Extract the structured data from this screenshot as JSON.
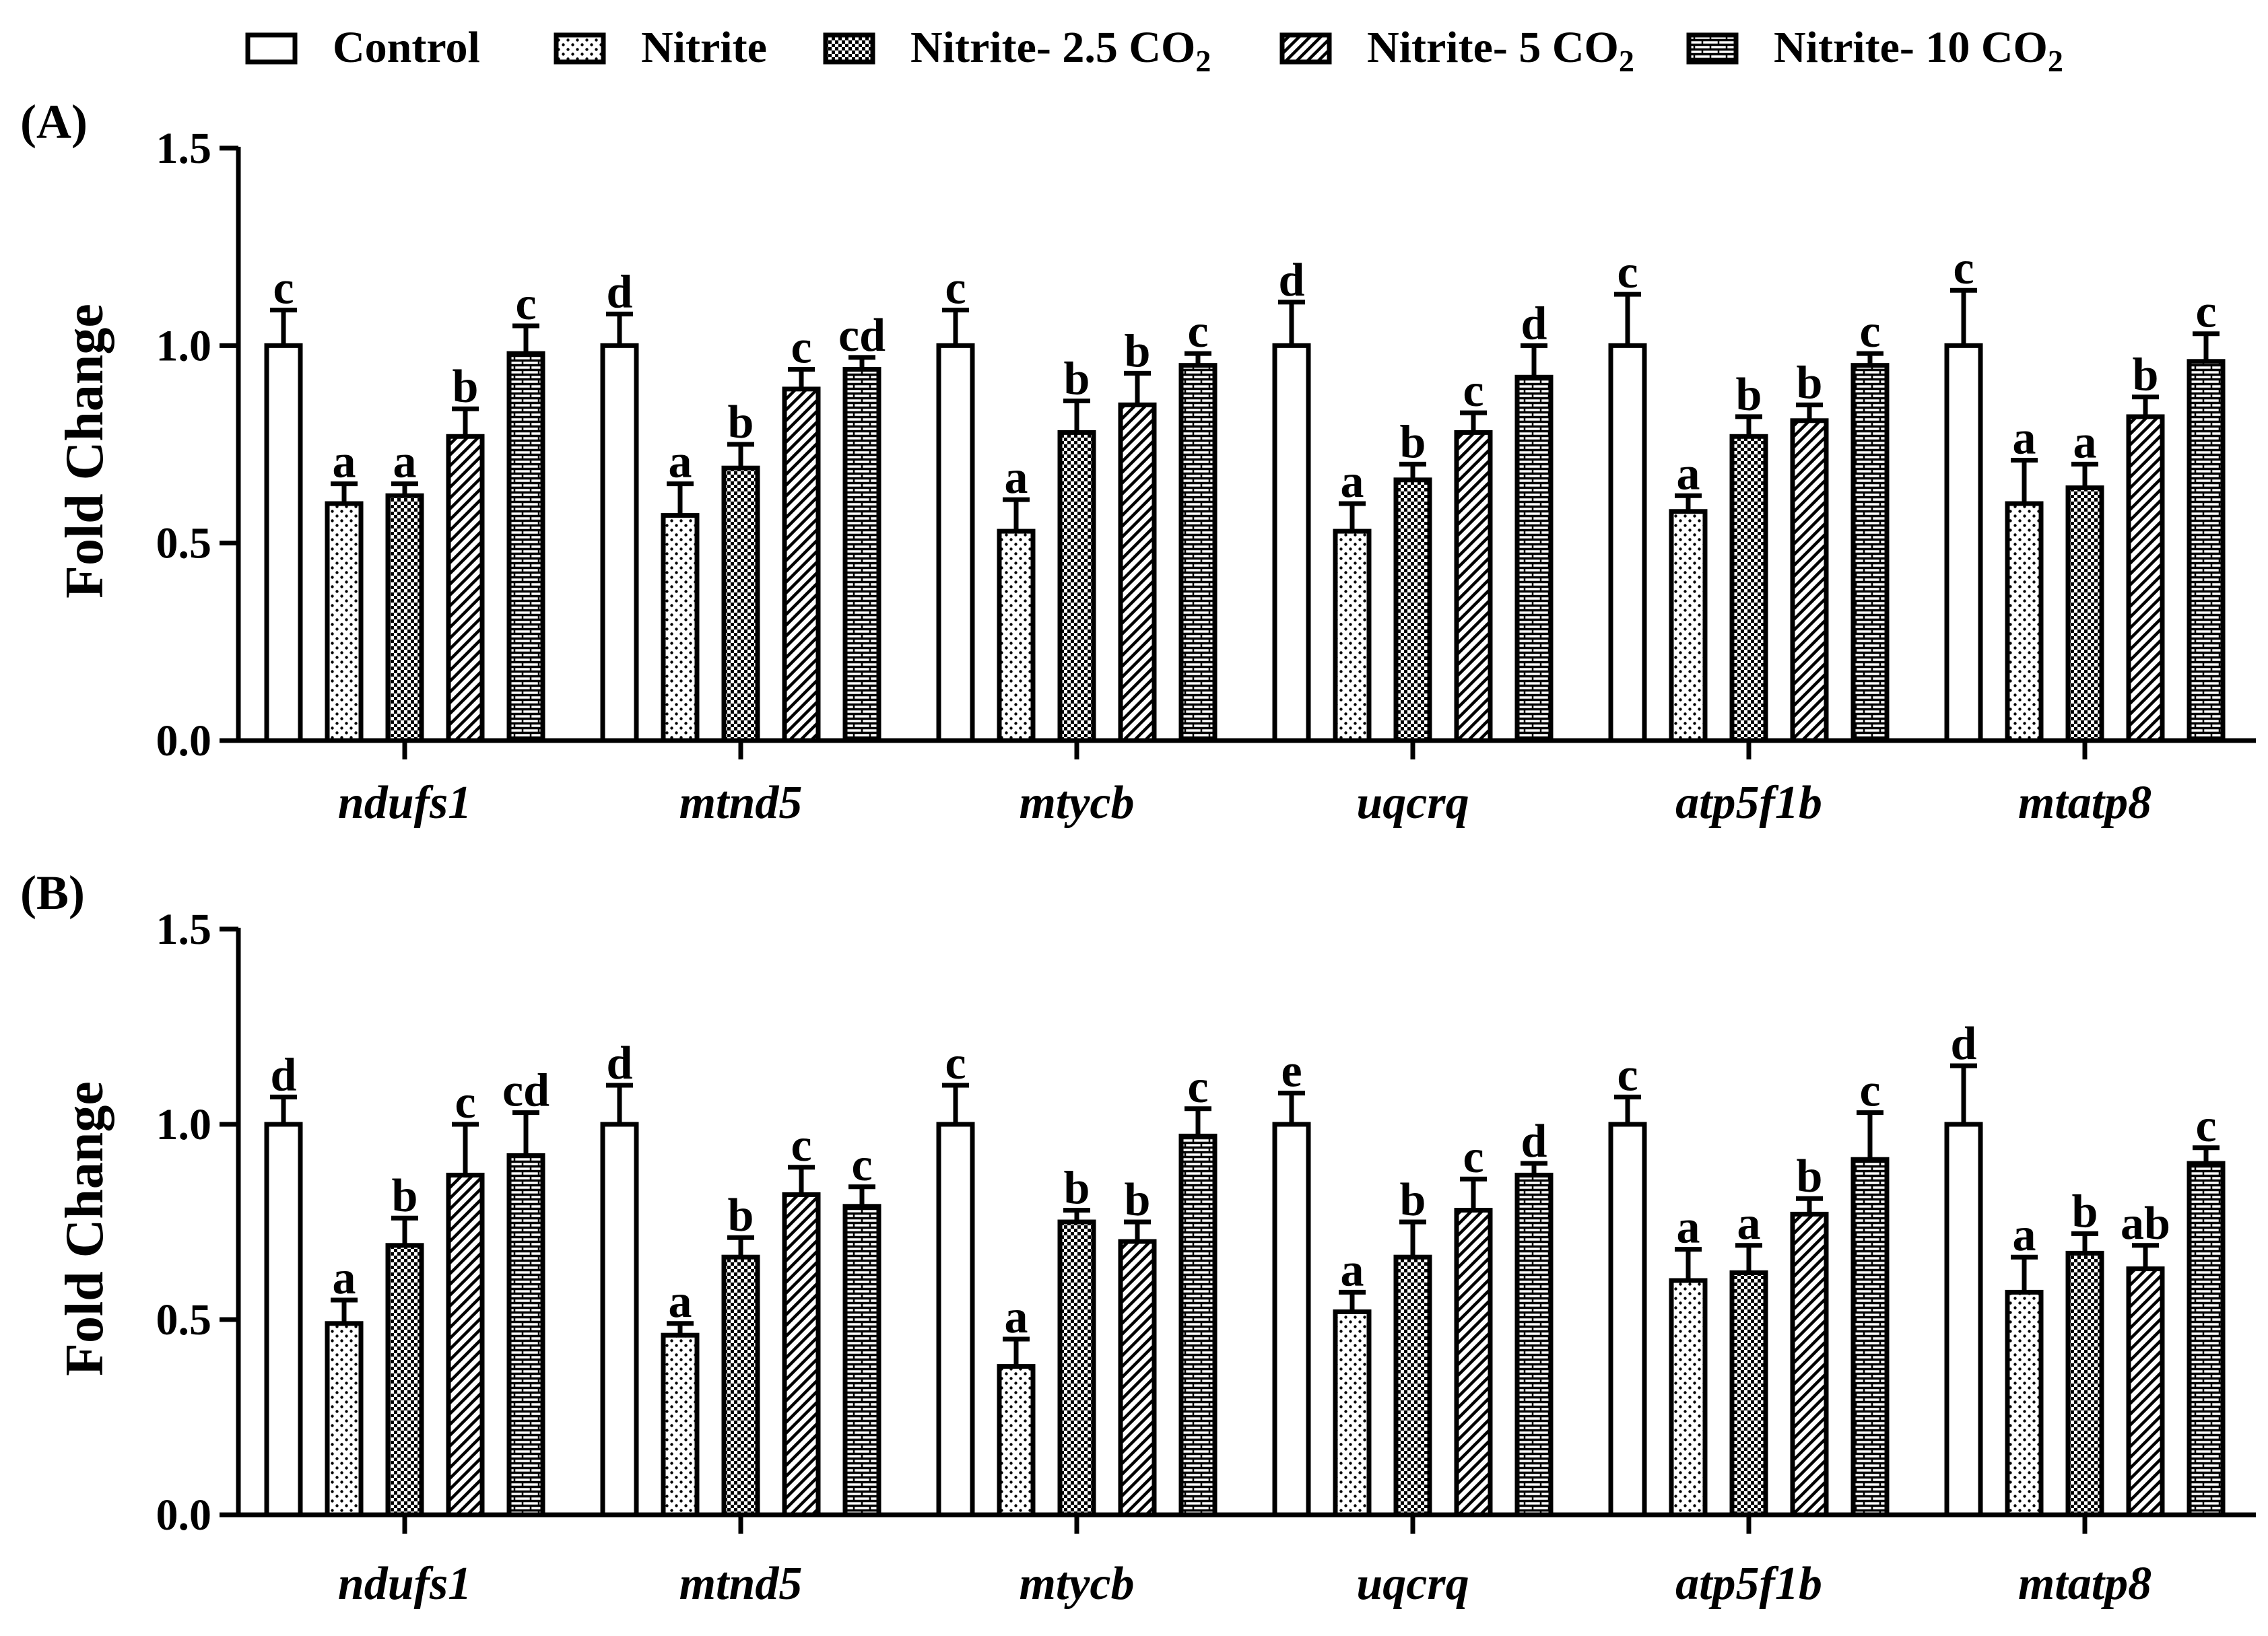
{
  "legend": {
    "entries": [
      {
        "label": "Control",
        "sub": "",
        "pattern": "none"
      },
      {
        "label": "Nitrite",
        "sub": "",
        "pattern": "dots"
      },
      {
        "label": "Nitrite- 2.5 CO",
        "sub": "2",
        "pattern": "checker"
      },
      {
        "label": "Nitrite- 5 CO",
        "sub": "2",
        "pattern": "hatch"
      },
      {
        "label": "Nitrite- 10 CO",
        "sub": "2",
        "pattern": "brick"
      }
    ]
  },
  "chart_data": [
    {
      "type": "bar",
      "panel_label": "(A)",
      "ylabel": "Fold Change",
      "ylim": [
        0,
        1.5
      ],
      "yticks": [
        "0.0",
        "0.5",
        "1.0",
        "1.5"
      ],
      "categories": [
        "ndufs1",
        "mtnd5",
        "mtycb",
        "uqcrq",
        "atp5f1b",
        "mtatp8"
      ],
      "series": [
        {
          "name": "Control",
          "values": [
            1.0,
            1.0,
            1.0,
            1.0,
            1.0,
            1.0
          ],
          "errors": [
            0.09,
            0.08,
            0.09,
            0.11,
            0.13,
            0.14
          ],
          "letters": [
            "c",
            "d",
            "c",
            "d",
            "c",
            "c"
          ]
        },
        {
          "name": "Nitrite",
          "values": [
            0.6,
            0.57,
            0.53,
            0.53,
            0.58,
            0.6
          ],
          "errors": [
            0.05,
            0.08,
            0.08,
            0.07,
            0.04,
            0.11
          ],
          "letters": [
            "a",
            "a",
            "a",
            "a",
            "a",
            "a"
          ]
        },
        {
          "name": "Nitrite- 2.5 CO2",
          "values": [
            0.62,
            0.69,
            0.78,
            0.66,
            0.77,
            0.64
          ],
          "errors": [
            0.03,
            0.06,
            0.08,
            0.04,
            0.05,
            0.06
          ],
          "letters": [
            "a",
            "b",
            "b",
            "b",
            "b",
            "a"
          ]
        },
        {
          "name": "Nitrite- 5 CO2",
          "values": [
            0.77,
            0.89,
            0.85,
            0.78,
            0.81,
            0.82
          ],
          "errors": [
            0.07,
            0.05,
            0.08,
            0.05,
            0.04,
            0.05
          ],
          "letters": [
            "b",
            "c",
            "b",
            "c",
            "b",
            "b"
          ]
        },
        {
          "name": "Nitrite- 10 CO2",
          "values": [
            0.98,
            0.94,
            0.95,
            0.92,
            0.95,
            0.96
          ],
          "errors": [
            0.07,
            0.03,
            0.03,
            0.08,
            0.03,
            0.07
          ],
          "letters": [
            "c",
            "cd",
            "c",
            "d",
            "c",
            "c"
          ]
        }
      ]
    },
    {
      "type": "bar",
      "panel_label": "(B)",
      "ylabel": "Fold Change",
      "ylim": [
        0,
        1.5
      ],
      "yticks": [
        "0.0",
        "0.5",
        "1.0",
        "1.5"
      ],
      "categories": [
        "ndufs1",
        "mtnd5",
        "mtycb",
        "uqcrq",
        "atp5f1b",
        "mtatp8"
      ],
      "series": [
        {
          "name": "Control",
          "values": [
            1.0,
            1.0,
            1.0,
            1.0,
            1.0,
            1.0
          ],
          "errors": [
            0.07,
            0.1,
            0.1,
            0.08,
            0.07,
            0.15
          ],
          "letters": [
            "d",
            "d",
            "c",
            "e",
            "c",
            "d"
          ]
        },
        {
          "name": "Nitrite",
          "values": [
            0.49,
            0.46,
            0.38,
            0.52,
            0.6,
            0.57
          ],
          "errors": [
            0.06,
            0.03,
            0.07,
            0.05,
            0.08,
            0.09
          ],
          "letters": [
            "a",
            "a",
            "a",
            "a",
            "a",
            "a"
          ]
        },
        {
          "name": "Nitrite- 2.5 CO2",
          "values": [
            0.69,
            0.66,
            0.75,
            0.66,
            0.62,
            0.67
          ],
          "errors": [
            0.07,
            0.05,
            0.03,
            0.09,
            0.07,
            0.05
          ],
          "letters": [
            "b",
            "b",
            "b",
            "b",
            "a",
            "b"
          ]
        },
        {
          "name": "Nitrite- 5 CO2",
          "values": [
            0.87,
            0.82,
            0.7,
            0.78,
            0.77,
            0.63
          ],
          "errors": [
            0.13,
            0.07,
            0.05,
            0.08,
            0.04,
            0.06
          ],
          "letters": [
            "c",
            "c",
            "b",
            "c",
            "b",
            "ab"
          ]
        },
        {
          "name": "Nitrite- 10 CO2",
          "values": [
            0.92,
            0.79,
            0.97,
            0.87,
            0.91,
            0.9
          ],
          "errors": [
            0.11,
            0.05,
            0.07,
            0.03,
            0.12,
            0.04
          ],
          "letters": [
            "cd",
            "c",
            "c",
            "d",
            "c",
            "c"
          ]
        }
      ]
    }
  ]
}
